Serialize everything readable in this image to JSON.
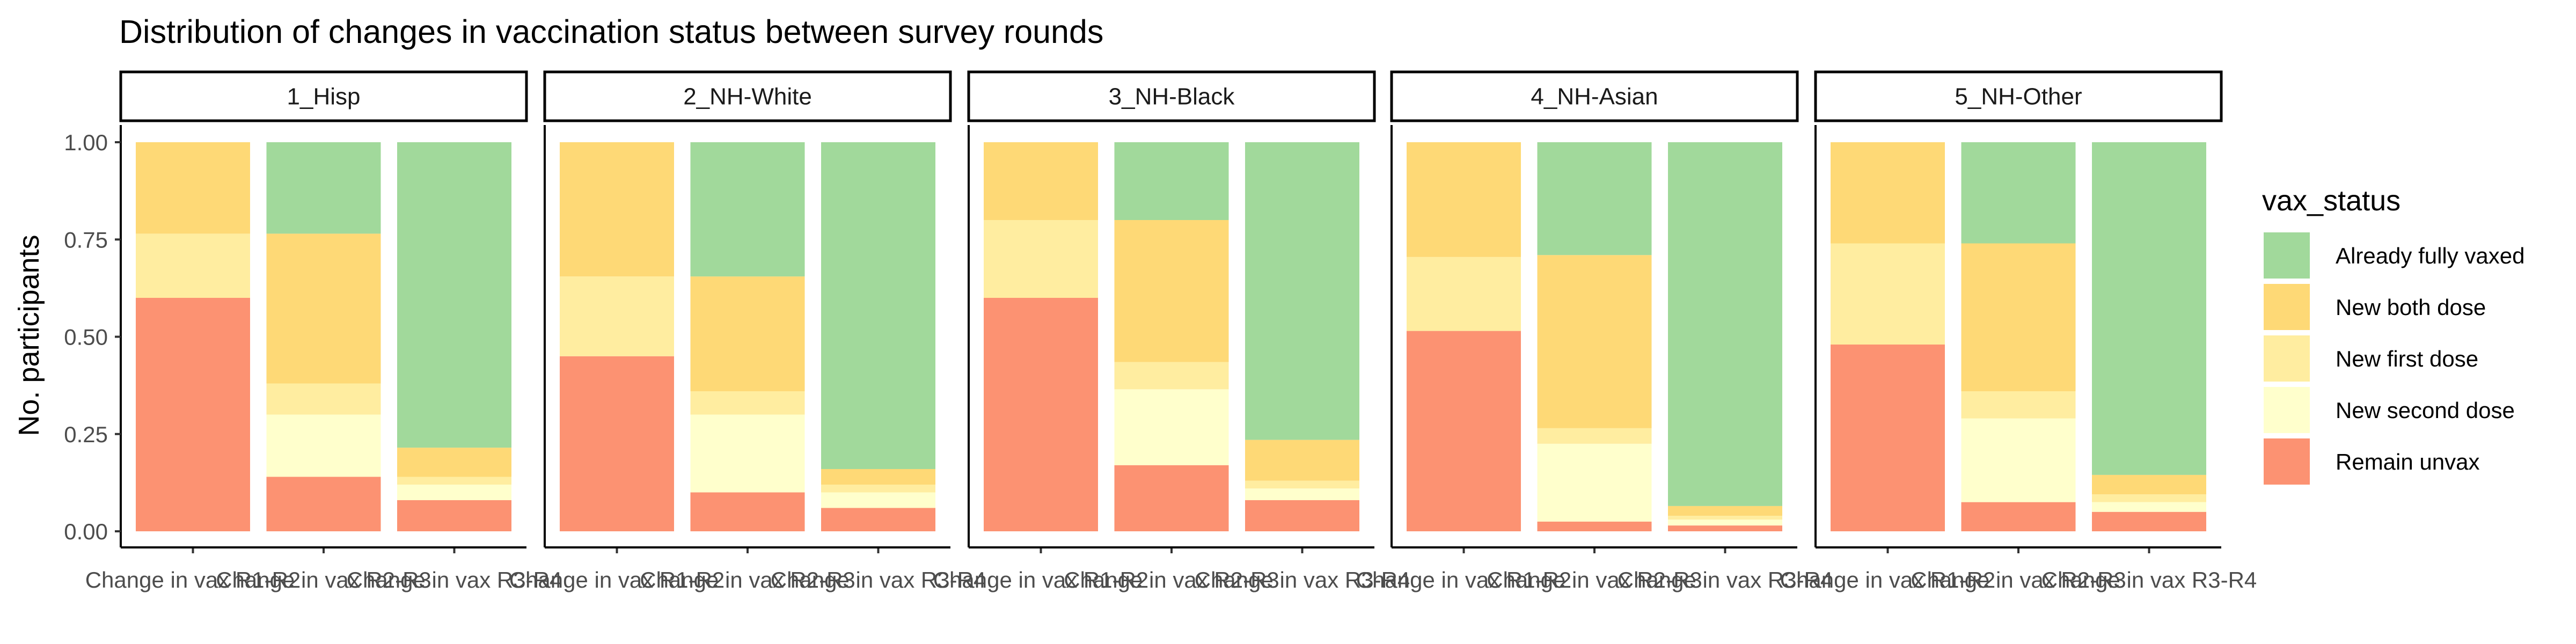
{
  "chart_data": {
    "type": "bar",
    "stacked": true,
    "title": "Distribution of changes in vaccination status between survey rounds",
    "ylabel": "No. participants",
    "xlabel": "",
    "ylim": [
      0,
      1
    ],
    "yticks": [
      "0.00",
      "0.25",
      "0.50",
      "0.75",
      "1.00"
    ],
    "ytick_values": [
      0,
      0.25,
      0.5,
      0.75,
      1
    ],
    "categories": [
      "Change in vax R1-R2",
      "Change in vax R2-R3",
      "Change in vax R3-R4"
    ],
    "legend": {
      "title": "vax_status",
      "placement": "right",
      "entries": [
        "Already fully vaxed",
        "New both dose",
        "New first dose",
        "New second dose",
        "Remain unvax"
      ]
    },
    "colors": {
      "Already fully vaxed": "#a1d99b",
      "New both dose": "#fed976",
      "New first dose": "#ffeda0",
      "New second dose": "#ffffcc",
      "Remain unvax": "#fc9272"
    },
    "stack_order": [
      "Remain unvax",
      "New second dose",
      "New first dose",
      "New both dose",
      "Already fully vaxed"
    ],
    "panels": [
      {
        "label": "1_Hisp",
        "values": {
          "Remain unvax": [
            0.6,
            0.14,
            0.08
          ],
          "New second dose": [
            0.0,
            0.16,
            0.04
          ],
          "New first dose": [
            0.165,
            0.08,
            0.02
          ],
          "New both dose": [
            0.235,
            0.385,
            0.075
          ],
          "Already fully vaxed": [
            0.0,
            0.235,
            0.785
          ]
        }
      },
      {
        "label": "2_NH-White",
        "values": {
          "Remain unvax": [
            0.45,
            0.1,
            0.06
          ],
          "New second dose": [
            0.0,
            0.2,
            0.04
          ],
          "New first dose": [
            0.205,
            0.06,
            0.02
          ],
          "New both dose": [
            0.345,
            0.295,
            0.04
          ],
          "Already fully vaxed": [
            0.0,
            0.345,
            0.84
          ]
        }
      },
      {
        "label": "3_NH-Black",
        "values": {
          "Remain unvax": [
            0.6,
            0.17,
            0.08
          ],
          "New second dose": [
            0.0,
            0.195,
            0.03
          ],
          "New first dose": [
            0.2,
            0.07,
            0.02
          ],
          "New both dose": [
            0.2,
            0.365,
            0.105
          ],
          "Already fully vaxed": [
            0.0,
            0.2,
            0.765
          ]
        }
      },
      {
        "label": "4_NH-Asian",
        "values": {
          "Remain unvax": [
            0.515,
            0.025,
            0.015
          ],
          "New second dose": [
            0.0,
            0.2,
            0.015
          ],
          "New first dose": [
            0.19,
            0.04,
            0.01
          ],
          "New both dose": [
            0.295,
            0.445,
            0.025
          ],
          "Already fully vaxed": [
            0.0,
            0.29,
            0.935
          ]
        }
      },
      {
        "label": "5_NH-Other",
        "values": {
          "Remain unvax": [
            0.48,
            0.075,
            0.05
          ],
          "New second dose": [
            0.0,
            0.215,
            0.025
          ],
          "New first dose": [
            0.26,
            0.07,
            0.02
          ],
          "New both dose": [
            0.26,
            0.38,
            0.05
          ],
          "Already fully vaxed": [
            0.0,
            0.26,
            0.855
          ]
        }
      }
    ]
  }
}
